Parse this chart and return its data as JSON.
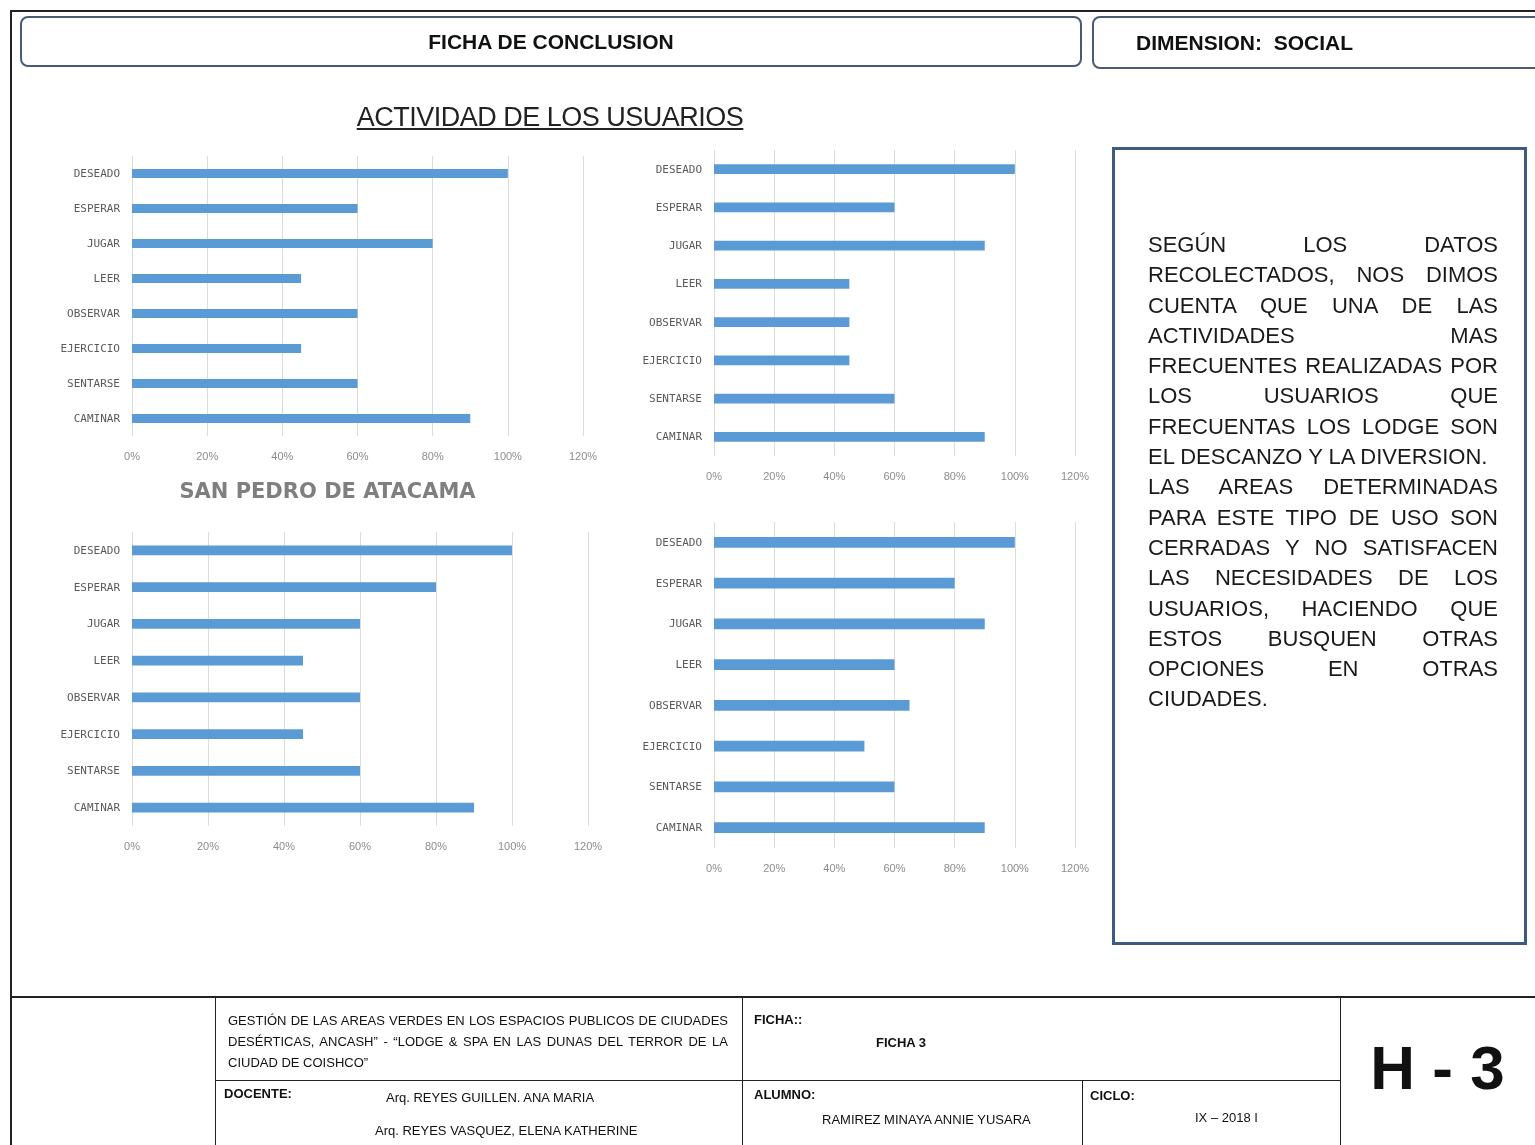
{
  "chart_data": [
    {
      "type": "other",
      "title": "FICHA DE CONCLUSION",
      "annotations": [
        "DIMENSION:  SOCIAL"
      ]
    },
    {
      "type": "other",
      "title": "ACTIVIDAD DE LOS USUARIOS"
    },
    {
      "type": "bar",
      "orientation": "horizontal",
      "title": "SAN PEDRO DE ATACAMA",
      "categories": [
        "DESEADO",
        "ESPERAR",
        "JUGAR",
        "LEER",
        "OBSERVAR",
        "EJERCICIO",
        "SENTARSE",
        "CAMINAR"
      ],
      "values": [
        100,
        60,
        80,
        45,
        60,
        45,
        60,
        90
      ],
      "color": "#5b9bd5",
      "xlim": [
        0,
        120
      ],
      "xticks": [
        {
          "value": 0,
          "label": "0%"
        },
        {
          "value": 20,
          "label": "20%"
        },
        {
          "value": 40,
          "label": "40%"
        },
        {
          "value": 60,
          "label": "60%"
        },
        {
          "value": 80,
          "label": "80%"
        },
        {
          "value": 100,
          "label": "100%"
        },
        {
          "value": 120,
          "label": "120%"
        }
      ],
      "grid": "x"
    },
    {
      "type": "bar",
      "orientation": "horizontal",
      "categories": [
        "DESEADO",
        "ESPERAR",
        "JUGAR",
        "LEER",
        "OBSERVAR",
        "EJERCICIO",
        "SENTARSE",
        "CAMINAR"
      ],
      "values": [
        100,
        60,
        90,
        45,
        45,
        45,
        60,
        90
      ],
      "color": "#5b9bd5",
      "xlim": [
        0,
        120
      ],
      "xticks": [
        {
          "value": 0,
          "label": "0%"
        },
        {
          "value": 20,
          "label": "20%"
        },
        {
          "value": 40,
          "label": "40%"
        },
        {
          "value": 60,
          "label": "60%"
        },
        {
          "value": 80,
          "label": "80%"
        },
        {
          "value": 100,
          "label": "100%"
        },
        {
          "value": 120,
          "label": "120%"
        }
      ],
      "grid": "x"
    },
    {
      "type": "bar",
      "orientation": "horizontal",
      "categories": [
        "DESEADO",
        "ESPERAR",
        "JUGAR",
        "LEER",
        "OBSERVAR",
        "EJERCICIO",
        "SENTARSE",
        "CAMINAR"
      ],
      "values": [
        100,
        80,
        60,
        45,
        60,
        45,
        60,
        90
      ],
      "color": "#5b9bd5",
      "xlim": [
        0,
        120
      ],
      "xticks": [
        {
          "value": 0,
          "label": "0%"
        },
        {
          "value": 20,
          "label": "20%"
        },
        {
          "value": 40,
          "label": "40%"
        },
        {
          "value": 60,
          "label": "60%"
        },
        {
          "value": 80,
          "label": "80%"
        },
        {
          "value": 100,
          "label": "100%"
        },
        {
          "value": 120,
          "label": "120%"
        }
      ],
      "grid": "x"
    },
    {
      "type": "bar",
      "orientation": "horizontal",
      "categories": [
        "DESEADO",
        "ESPERAR",
        "JUGAR",
        "LEER",
        "OBSERVAR",
        "EJERCICIO",
        "SENTARSE",
        "CAMINAR"
      ],
      "values": [
        100,
        80,
        90,
        60,
        65,
        50,
        60,
        90
      ],
      "color": "#5b9bd5",
      "xlim": [
        0,
        120
      ],
      "xticks": [
        {
          "value": 0,
          "label": "0%"
        },
        {
          "value": 20,
          "label": "20%"
        },
        {
          "value": 40,
          "label": "40%"
        },
        {
          "value": 60,
          "label": "60%"
        },
        {
          "value": 80,
          "label": "80%"
        },
        {
          "value": 100,
          "label": "100%"
        },
        {
          "value": 120,
          "label": "120%"
        }
      ],
      "grid": "x"
    },
    {
      "type": "other",
      "annotations": [
        "SEGÚN LOS DATOS RECOLECTADOS, NOS DIMOS CUENTA QUE UNA DE LAS ACTIVIDADES MAS FRECUENTES REALIZADAS POR LOS USUARIOS QUE FRECUENTAS LOS LODGE SON EL DESCANZO Y LA DIVERSION.",
        "LAS AREAS DETERMINADAS PARA ESTE TIPO DE USO SON CERRADAS Y NO SATISFACEN LAS NECESIDADES DE LOS USUARIOS, HACIENDO QUE ESTOS BUSQUEN OTRAS OPCIONES EN OTRAS CIUDADES."
      ]
    },
    {
      "type": "other",
      "annotations": [
        "GESTIÓN DE LAS AREAS VERDES EN LOS ESPACIOS PUBLICOS DE CIUDADES DESÉRTICAS, ANCASH” - “LODGE & SPA EN LAS DUNAS DEL TERROR DE LA CIUDAD DE COISHCO”",
        "FICHA::",
        "FICHA 3",
        "H - 3",
        "DOCENTE:",
        "Arq. REYES GUILLEN. ANA MARIA",
        "Arq. REYES VASQUEZ, ELENA KATHERINE",
        "ALUMNO:",
        "RAMIREZ MINAYA ANNIE YUSARA",
        "CICLO:",
        "IX – 2018 I"
      ]
    }
  ]
}
